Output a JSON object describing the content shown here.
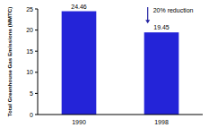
{
  "chart_data": {
    "type": "bar",
    "y_label": "Total Greenhouse Gas Emissions (MMTC)",
    "categories": [
      "1990",
      "1998"
    ],
    "values": [
      24.46,
      19.45
    ],
    "color": "#2424d8",
    "ylim": [
      0,
      25
    ],
    "yticks": [
      0,
      5,
      10,
      15,
      20,
      25
    ],
    "data_labels": true,
    "annotation": "20% reduction"
  }
}
